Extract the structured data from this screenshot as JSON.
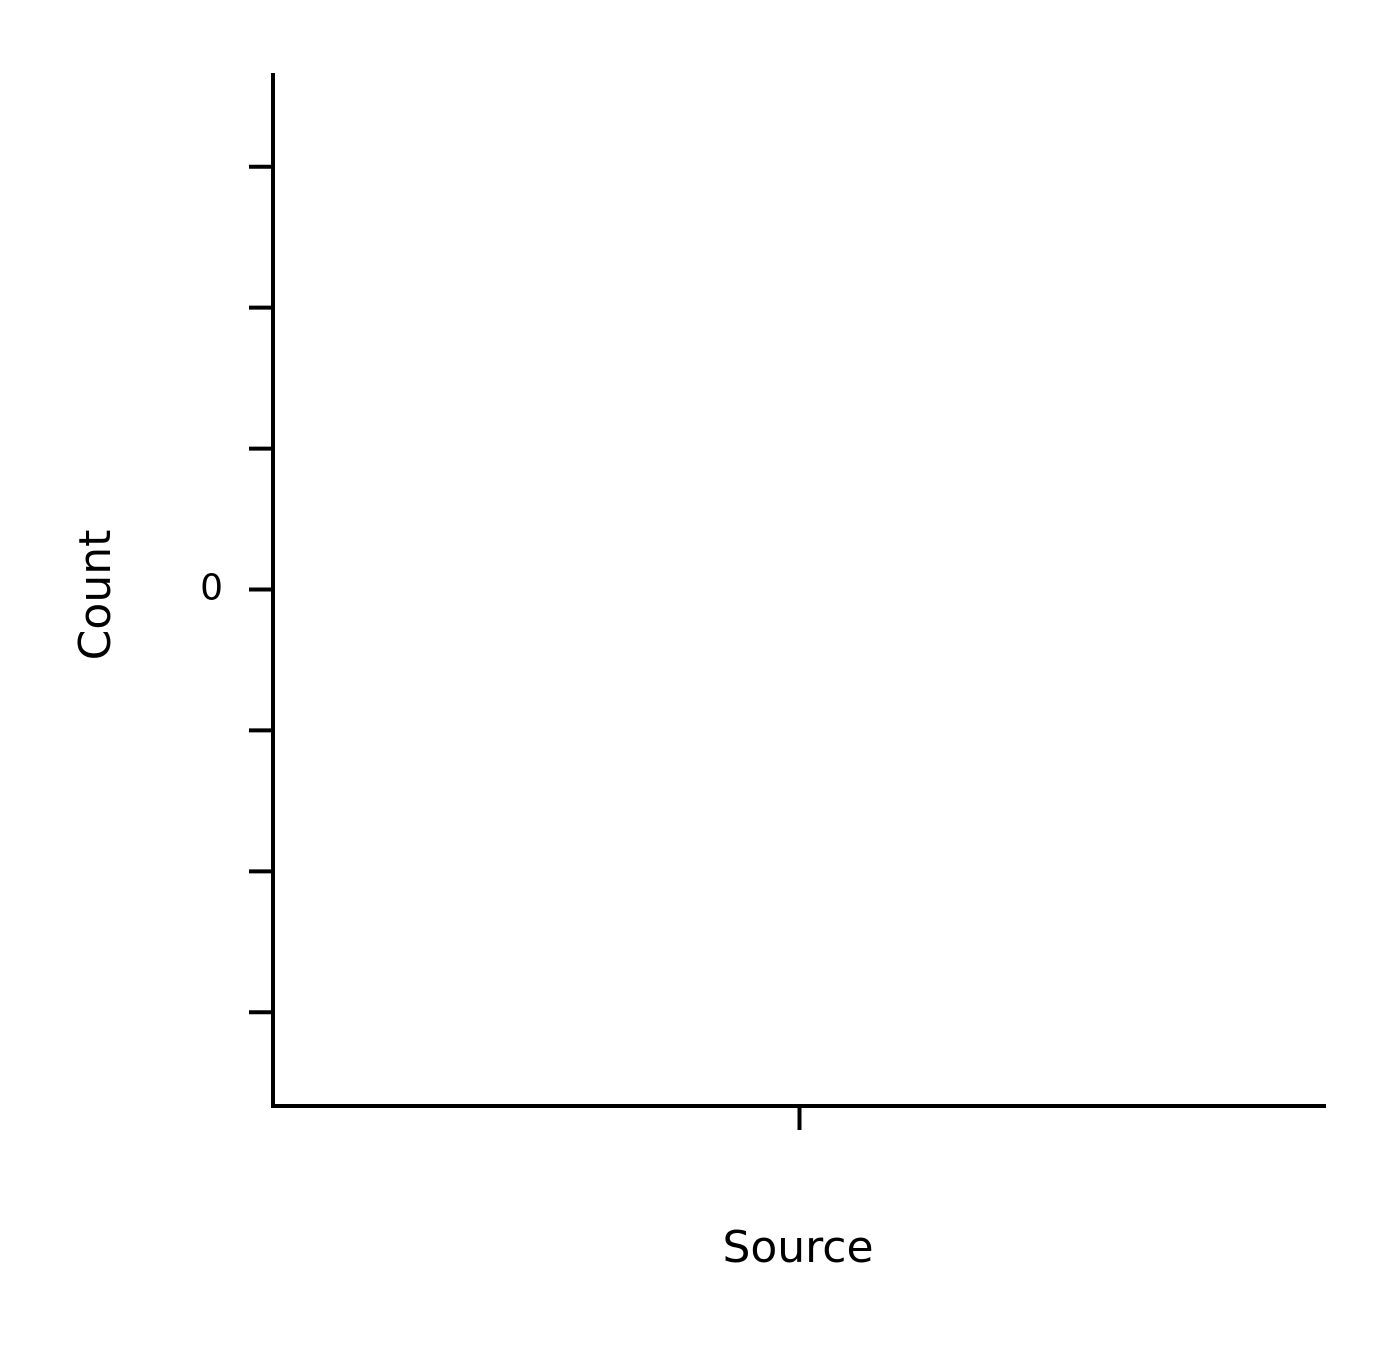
{
  "chart_data": {
    "type": "bar",
    "xlabel": "Source",
    "ylabel": "Count",
    "categories": [
      null
    ],
    "values": [
      0
    ],
    "color": "#1f77b4",
    "ylim": [
      -0.0733,
      0.0733
    ],
    "yticks": [
      -0.06,
      -0.04,
      -0.02,
      0,
      0.02,
      0.04,
      0.06
    ],
    "ytick_labels": [
      null,
      null,
      null,
      "0",
      null,
      null,
      null
    ],
    "grid": false
  }
}
